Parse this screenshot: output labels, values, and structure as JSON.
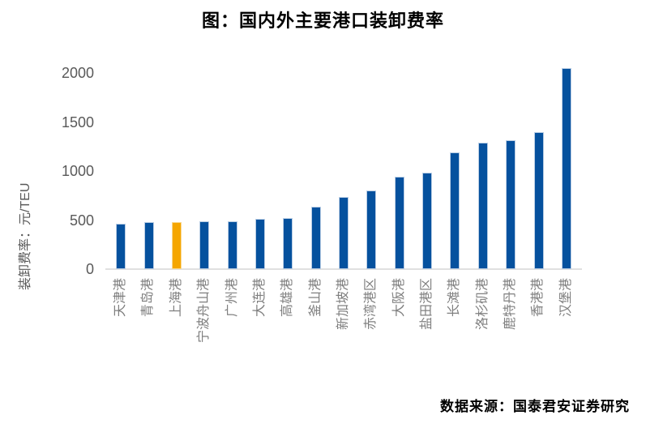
{
  "title": "图：国内外主要港口装卸费率",
  "source": "数据来源：国泰君安证券研究",
  "chart_data": {
    "type": "bar",
    "title": "图：国内外主要港口装卸费率",
    "categories": [
      "天津港",
      "青岛港",
      "上海港",
      "宁波舟山港",
      "广州港",
      "大连港",
      "高雄港",
      "釜山港",
      "新加坡港",
      "赤湾港区",
      "大阪港",
      "盐田港区",
      "长滩港",
      "洛杉矶港",
      "鹿特丹港",
      "香港港",
      "汉堡港"
    ],
    "values": [
      460,
      480,
      480,
      490,
      490,
      515,
      525,
      635,
      740,
      800,
      945,
      985,
      1190,
      1290,
      1315,
      1395,
      2050
    ],
    "highlight_index": 2,
    "highlight_category": "上海港",
    "xlabel": "",
    "ylabel": "装卸费率：元/TEU",
    "yticks": [
      0,
      500,
      1000,
      1500,
      2000
    ],
    "ylim": [
      0,
      2200
    ],
    "grid": false,
    "legend_position": "none",
    "bar_color": "#05519E",
    "highlight_color": "#F5A600",
    "tick_label_color": "#595959",
    "category_label_color": "#7F7F7F"
  }
}
